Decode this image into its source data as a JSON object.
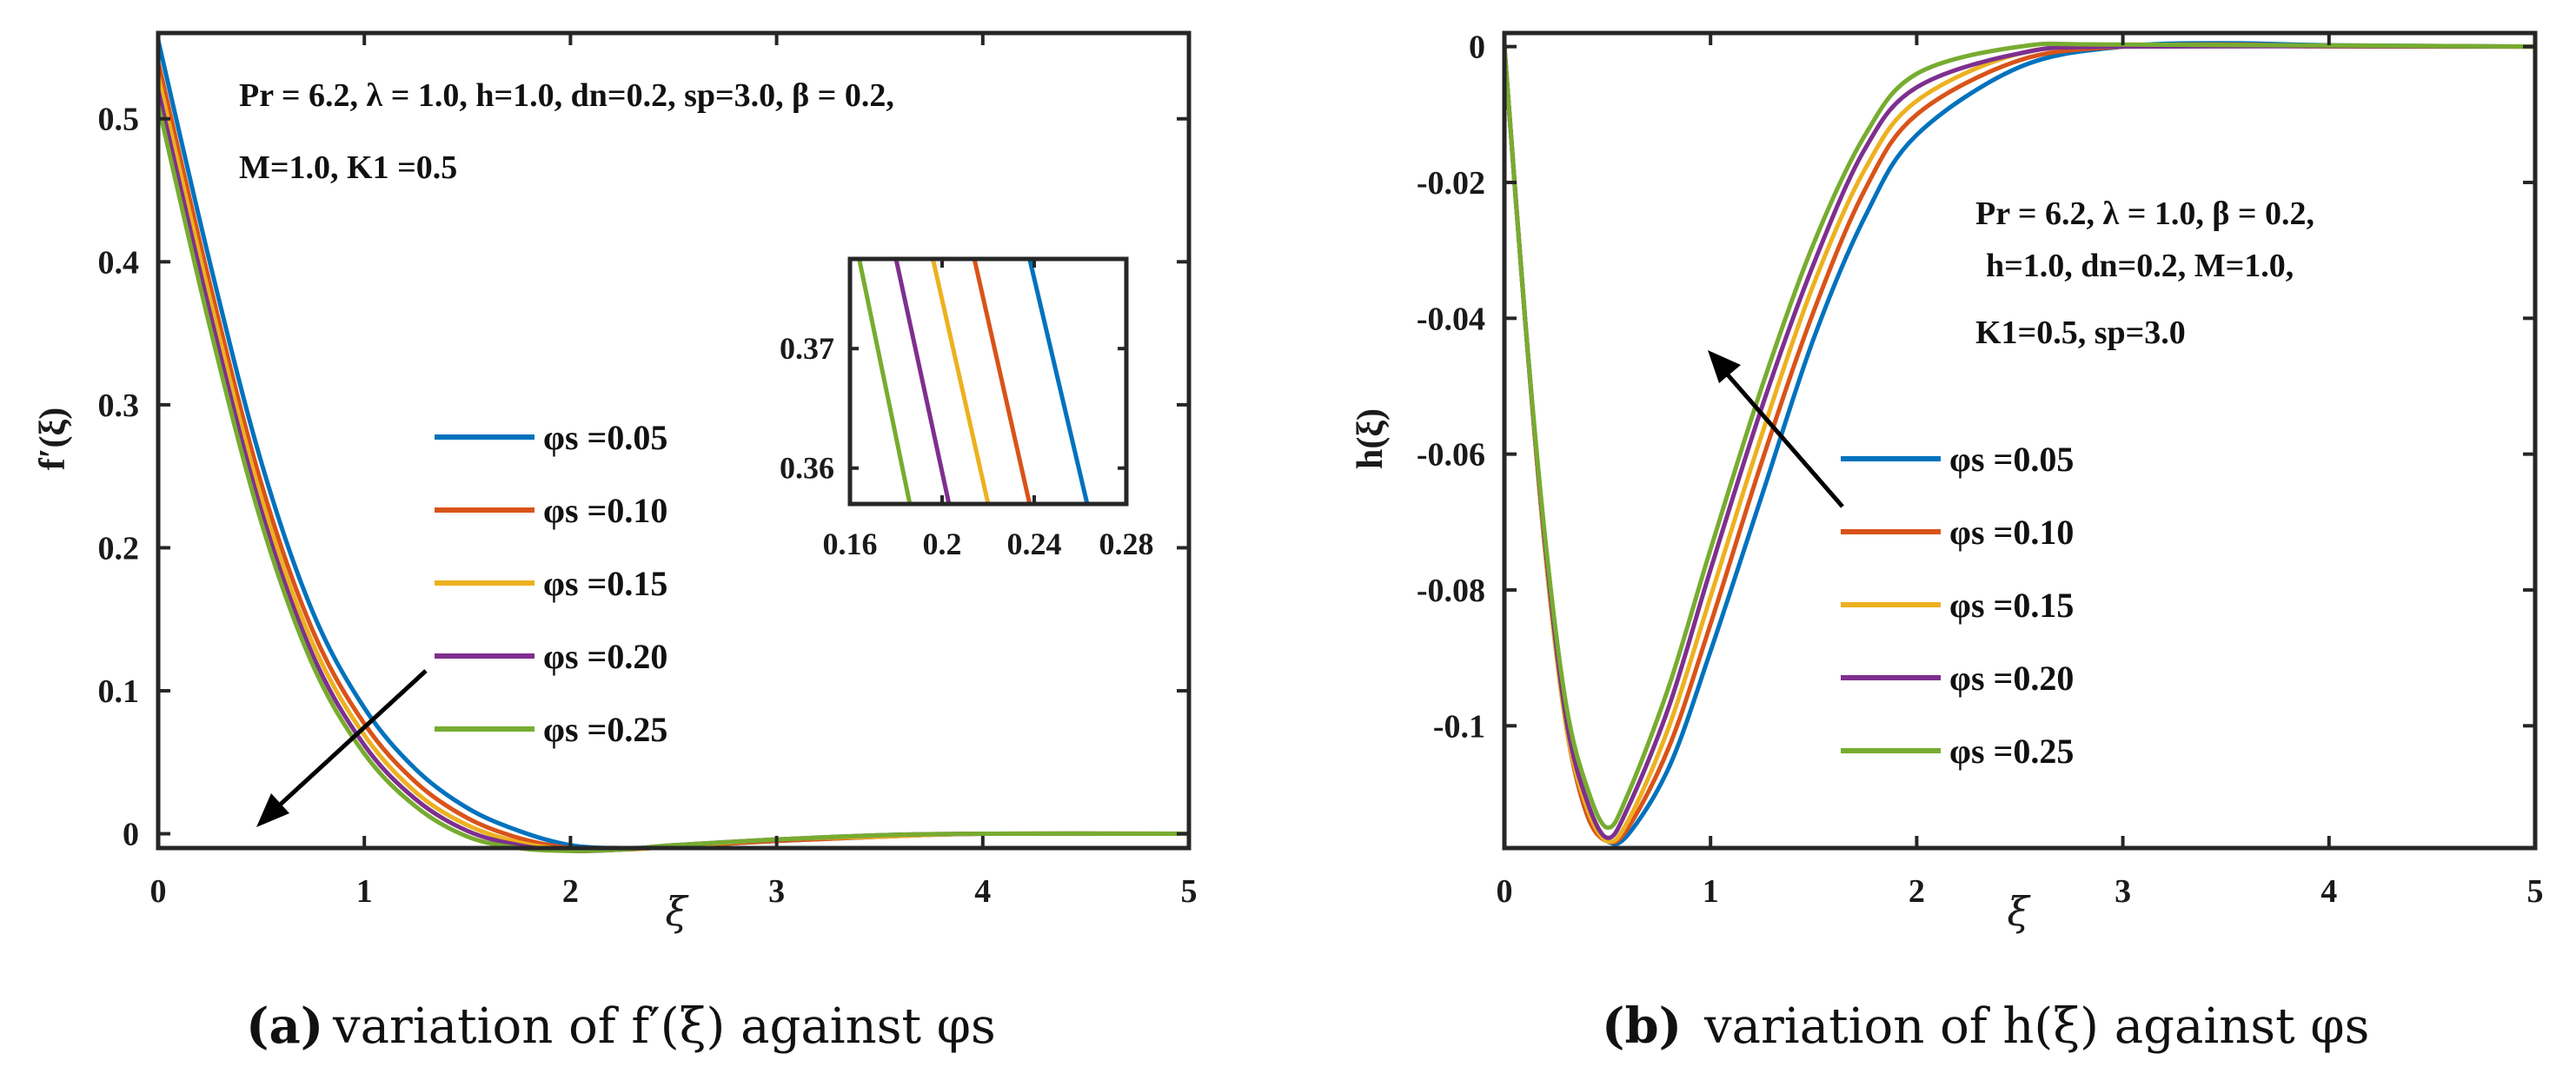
{
  "colors": {
    "series": [
      "#0072BD",
      "#D95319",
      "#EDB120",
      "#7E2F8E",
      "#77AC30"
    ],
    "axis": "#262626"
  },
  "chart_data": [
    {
      "type": "line",
      "panel": "a",
      "caption_id": "(a)",
      "caption_text": "variation of f′(ξ) against φs",
      "xlabel": "ξ",
      "ylabel": "f′(ξ)",
      "xlim": [
        0,
        5
      ],
      "ylim": [
        -0.01,
        0.56
      ],
      "xticks": [
        "0",
        "1",
        "2",
        "3",
        "4",
        "5"
      ],
      "yticks": [
        "0",
        "0.1",
        "0.2",
        "0.3",
        "0.4",
        "0.5"
      ],
      "annotation": [
        "Pr = 6.2, λ = 1.0, h=1.0, dn=0.2, sp=3.0, β = 0.2,",
        "M=1.0,  K1 =0.5"
      ],
      "legend_position": "center",
      "series": [
        {
          "name": "φs =0.05",
          "values": [
            [
              0,
              0.555
            ],
            [
              0.25,
              0.4
            ],
            [
              0.5,
              0.26
            ],
            [
              0.75,
              0.155
            ],
            [
              1,
              0.088
            ],
            [
              1.25,
              0.045
            ],
            [
              1.5,
              0.018
            ],
            [
              1.75,
              0.002
            ],
            [
              2,
              -0.008
            ],
            [
              2.25,
              -0.01
            ],
            [
              2.5,
              -0.009
            ],
            [
              3,
              -0.005
            ],
            [
              3.5,
              -0.002
            ],
            [
              4,
              0
            ],
            [
              5,
              0
            ]
          ]
        },
        {
          "name": "φs =0.10",
          "values": [
            [
              0,
              0.54
            ],
            [
              0.25,
              0.385
            ],
            [
              0.5,
              0.245
            ],
            [
              0.75,
              0.142
            ],
            [
              1,
              0.077
            ],
            [
              1.25,
              0.036
            ],
            [
              1.5,
              0.011
            ],
            [
              1.75,
              -0.003
            ],
            [
              2,
              -0.01
            ],
            [
              2.25,
              -0.011
            ],
            [
              2.5,
              -0.009
            ],
            [
              3,
              -0.005
            ],
            [
              3.5,
              -0.002
            ],
            [
              4,
              0
            ],
            [
              5,
              0
            ]
          ]
        },
        {
          "name": "φs =0.15",
          "values": [
            [
              0,
              0.53
            ],
            [
              0.25,
              0.375
            ],
            [
              0.5,
              0.235
            ],
            [
              0.75,
              0.133
            ],
            [
              1,
              0.069
            ],
            [
              1.25,
              0.029
            ],
            [
              1.5,
              0.006
            ],
            [
              1.75,
              -0.006
            ],
            [
              2,
              -0.011
            ],
            [
              2.25,
              -0.011
            ],
            [
              2.5,
              -0.009
            ],
            [
              3,
              -0.004
            ],
            [
              3.5,
              -0.002
            ],
            [
              4,
              0
            ],
            [
              5,
              0
            ]
          ]
        },
        {
          "name": "φs =0.20",
          "values": [
            [
              0,
              0.52
            ],
            [
              0.25,
              0.365
            ],
            [
              0.5,
              0.226
            ],
            [
              0.75,
              0.125
            ],
            [
              1,
              0.062
            ],
            [
              1.25,
              0.024
            ],
            [
              1.5,
              0.002
            ],
            [
              1.75,
              -0.008
            ],
            [
              2,
              -0.012
            ],
            [
              2.25,
              -0.011
            ],
            [
              2.5,
              -0.008
            ],
            [
              3,
              -0.004
            ],
            [
              3.5,
              -0.001
            ],
            [
              4,
              0
            ],
            [
              5,
              0
            ]
          ]
        },
        {
          "name": "φs =0.25",
          "values": [
            [
              0,
              0.51
            ],
            [
              0.25,
              0.355
            ],
            [
              0.5,
              0.218
            ],
            [
              0.75,
              0.118
            ],
            [
              1,
              0.056
            ],
            [
              1.25,
              0.019
            ],
            [
              1.5,
              -0.002
            ],
            [
              1.75,
              -0.01
            ],
            [
              2,
              -0.012
            ],
            [
              2.25,
              -0.011
            ],
            [
              2.5,
              -0.008
            ],
            [
              3,
              -0.004
            ],
            [
              3.5,
              -0.001
            ],
            [
              4,
              0
            ],
            [
              5,
              0
            ]
          ]
        }
      ],
      "inset": {
        "xlim": [
          0.16,
          0.28
        ],
        "ylim": [
          0.357,
          0.3775
        ],
        "xticks": [
          "0.16",
          "0.2",
          "0.24",
          "0.28"
        ],
        "yticks": [
          "0.36",
          "0.37"
        ],
        "series_x_at_ymin": [
          0.263,
          0.238,
          0.22,
          0.203,
          0.186
        ],
        "series_x_at_ymax": [
          0.238,
          0.214,
          0.196,
          0.18,
          0.164
        ]
      }
    },
    {
      "type": "line",
      "panel": "b",
      "caption_id": "(b)",
      "caption_text": "variation of h(ξ) against φs",
      "xlabel": "ξ",
      "ylabel": "h(ξ)",
      "xlim": [
        0,
        5
      ],
      "ylim": [
        -0.118,
        0.002
      ],
      "xticks": [
        "0",
        "1",
        "2",
        "3",
        "4",
        "5"
      ],
      "yticks": [
        "0",
        "-0.02",
        "-0.04",
        "-0.06",
        "-0.08",
        "-0.1"
      ],
      "annotation": [
        "Pr = 6.2,  λ = 1.0, β = 0.2,",
        "h=1.0, dn=0.2, M=1.0,",
        "K1=0.5, sp=3.0"
      ],
      "legend_position": "center",
      "series": [
        {
          "name": "φs =0.05",
          "values": [
            [
              0,
              0
            ],
            [
              0.1,
              -0.04
            ],
            [
              0.2,
              -0.075
            ],
            [
              0.3,
              -0.1
            ],
            [
              0.4,
              -0.113
            ],
            [
              0.5,
              -0.117
            ],
            [
              0.6,
              -0.116
            ],
            [
              0.8,
              -0.106
            ],
            [
              1,
              -0.089
            ],
            [
              1.25,
              -0.066
            ],
            [
              1.5,
              -0.043
            ],
            [
              1.75,
              -0.025
            ],
            [
              2,
              -0.013
            ],
            [
              2.5,
              -0.003
            ],
            [
              3,
              0
            ],
            [
              3.5,
              0.0005
            ],
            [
              4,
              0.0002
            ],
            [
              5,
              0
            ]
          ]
        },
        {
          "name": "φs =0.10",
          "values": [
            [
              0,
              0
            ],
            [
              0.1,
              -0.04
            ],
            [
              0.2,
              -0.075
            ],
            [
              0.3,
              -0.1
            ],
            [
              0.4,
              -0.113
            ],
            [
              0.5,
              -0.117
            ],
            [
              0.6,
              -0.115
            ],
            [
              0.8,
              -0.103
            ],
            [
              1,
              -0.085
            ],
            [
              1.25,
              -0.061
            ],
            [
              1.5,
              -0.039
            ],
            [
              1.75,
              -0.021
            ],
            [
              2,
              -0.01
            ],
            [
              2.5,
              -0.002
            ],
            [
              3,
              0
            ],
            [
              3.5,
              0.0003
            ],
            [
              4,
              0.0001
            ],
            [
              5,
              0
            ]
          ]
        },
        {
          "name": "φs =0.15",
          "values": [
            [
              0,
              0
            ],
            [
              0.1,
              -0.04
            ],
            [
              0.2,
              -0.075
            ],
            [
              0.3,
              -0.1
            ],
            [
              0.4,
              -0.112
            ],
            [
              0.5,
              -0.117
            ],
            [
              0.6,
              -0.114
            ],
            [
              0.8,
              -0.1
            ],
            [
              1,
              -0.081
            ],
            [
              1.25,
              -0.057
            ],
            [
              1.5,
              -0.035
            ],
            [
              1.75,
              -0.018
            ],
            [
              2,
              -0.008
            ],
            [
              2.5,
              -0.001
            ],
            [
              3,
              0
            ],
            [
              3.5,
              0.0002
            ],
            [
              4,
              0
            ],
            [
              5,
              0
            ]
          ]
        },
        {
          "name": "φs =0.20",
          "values": [
            [
              0,
              0
            ],
            [
              0.1,
              -0.04
            ],
            [
              0.2,
              -0.074
            ],
            [
              0.3,
              -0.099
            ],
            [
              0.4,
              -0.111
            ],
            [
              0.5,
              -0.1165
            ],
            [
              0.6,
              -0.112
            ],
            [
              0.8,
              -0.097
            ],
            [
              1,
              -0.077
            ],
            [
              1.25,
              -0.053
            ],
            [
              1.5,
              -0.032
            ],
            [
              1.75,
              -0.015
            ],
            [
              2,
              -0.006
            ],
            [
              2.5,
              -0.001
            ],
            [
              3,
              0
            ],
            [
              5,
              0
            ]
          ]
        },
        {
          "name": "φs =0.25",
          "values": [
            [
              0,
              0
            ],
            [
              0.1,
              -0.04
            ],
            [
              0.2,
              -0.073
            ],
            [
              0.3,
              -0.097
            ],
            [
              0.4,
              -0.109
            ],
            [
              0.5,
              -0.115
            ],
            [
              0.6,
              -0.11
            ],
            [
              0.8,
              -0.094
            ],
            [
              1,
              -0.074
            ],
            [
              1.25,
              -0.05
            ],
            [
              1.5,
              -0.029
            ],
            [
              1.75,
              -0.013
            ],
            [
              2,
              -0.004
            ],
            [
              2.5,
              0
            ],
            [
              3,
              0.0003
            ],
            [
              5,
              0
            ]
          ]
        }
      ]
    }
  ]
}
